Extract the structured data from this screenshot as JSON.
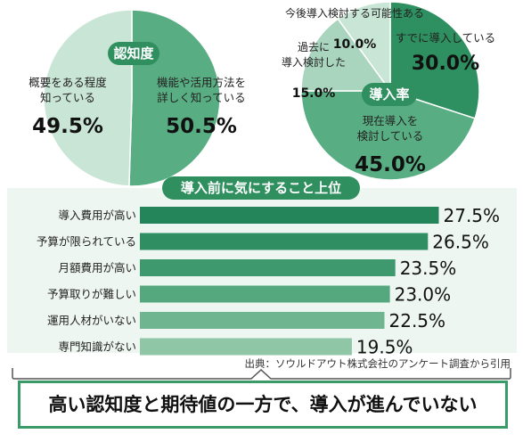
{
  "badges": {
    "awareness": "認知度",
    "adoption": "導入率",
    "top_concerns": "導入前に気にすること上位"
  },
  "colors": {
    "dark_green": "#2e9060",
    "mid_green": "#59ad82",
    "light_green": "#a9d4bd",
    "pale_green": "#c9e5d5",
    "panel_bg": "#eef6f1",
    "accent_border": "#3a9a68"
  },
  "chart_data": [
    {
      "type": "pie",
      "title": "認知度",
      "slices": [
        {
          "label": "機能や活用方法を詳しく知っている",
          "label_lines": [
            "機能や活用方法を",
            "詳しく知っている"
          ],
          "value": 50.5,
          "display": "50.5%"
        },
        {
          "label": "概要をある程度知っている",
          "label_lines": [
            "概要をある程度",
            "知っている"
          ],
          "value": 49.5,
          "display": "49.5%"
        }
      ]
    },
    {
      "type": "pie",
      "title": "導入率",
      "slices": [
        {
          "label": "すでに導入している",
          "label_lines": [
            "すでに導入している"
          ],
          "value": 30.0,
          "display": "30.0%"
        },
        {
          "label": "現在導入を検討している",
          "label_lines": [
            "現在導入を",
            "検討している"
          ],
          "value": 45.0,
          "display": "45.0%"
        },
        {
          "label": "過去に導入検討した",
          "label_lines": [
            "過去に",
            "導入検討した"
          ],
          "value": 15.0,
          "display": "15.0%"
        },
        {
          "label": "今後導入検討する可能性ある",
          "label_lines": [
            "今後導入検討する可能性ある"
          ],
          "value": 10.0,
          "display": "10.0%"
        }
      ]
    },
    {
      "type": "bar",
      "orientation": "horizontal",
      "title": "導入前に気にすること上位",
      "categories": [
        "導入費用が高い",
        "予算が限られている",
        "月額費用が高い",
        "予算取りが難しい",
        "運用人材がいない",
        "専門知識がない"
      ],
      "values": [
        27.5,
        26.5,
        23.5,
        23.0,
        22.5,
        19.5
      ],
      "value_labels": [
        "27.5%",
        "26.5%",
        "23.5%",
        "23.0%",
        "22.5%",
        "19.5%"
      ]
    }
  ],
  "source": "出典：ソウルドアウト株式会社のアンケート調査から引用",
  "conclusion": "高い認知度と期待値の一方で、導入が進んでいない"
}
